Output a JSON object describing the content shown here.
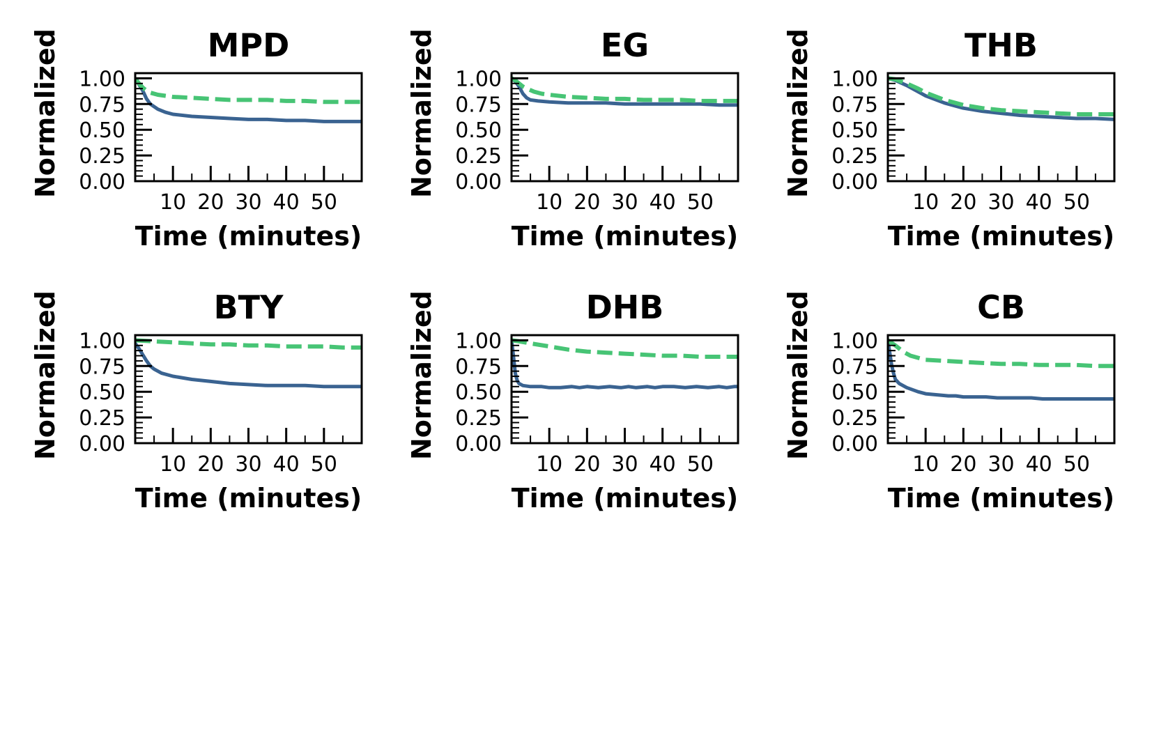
{
  "colors": {
    "series_solid": "#3a6391",
    "series_dashed": "#47c475",
    "axes": "#000000",
    "background": "#ffffff"
  },
  "chart_data": [
    {
      "type": "line",
      "title": "MPD",
      "xlabel": "Time (minutes)",
      "ylabel": "Normalized",
      "xlim": [
        0,
        60
      ],
      "ylim": [
        0.0,
        1.05
      ],
      "xticks": [
        10,
        20,
        30,
        40,
        50
      ],
      "xtick_labels": [
        "10",
        "20",
        "30",
        "40",
        "50"
      ],
      "yticks": [
        0.0,
        0.25,
        0.5,
        0.75,
        1.0
      ],
      "ytick_labels": [
        "0.00",
        "0.25",
        "0.50",
        "0.75",
        "1.00"
      ],
      "grid": false,
      "series": [
        {
          "style": "solid",
          "x": [
            0,
            1,
            2,
            3,
            4,
            6,
            8,
            10,
            15,
            20,
            25,
            30,
            35,
            40,
            45,
            50,
            55,
            60
          ],
          "y": [
            0.99,
            0.94,
            0.88,
            0.8,
            0.75,
            0.7,
            0.67,
            0.65,
            0.63,
            0.62,
            0.61,
            0.6,
            0.6,
            0.59,
            0.59,
            0.58,
            0.58,
            0.58
          ]
        },
        {
          "style": "dashed",
          "x": [
            0,
            1,
            2,
            3,
            4,
            6,
            8,
            10,
            15,
            20,
            25,
            30,
            35,
            40,
            45,
            50,
            55,
            60
          ],
          "y": [
            1.0,
            0.95,
            0.91,
            0.88,
            0.86,
            0.84,
            0.83,
            0.82,
            0.81,
            0.8,
            0.79,
            0.79,
            0.79,
            0.78,
            0.78,
            0.77,
            0.77,
            0.77
          ]
        }
      ]
    },
    {
      "type": "line",
      "title": "EG",
      "xlabel": "Time (minutes)",
      "ylabel": "Normalized",
      "xlim": [
        0,
        60
      ],
      "ylim": [
        0.0,
        1.05
      ],
      "xticks": [
        10,
        20,
        30,
        40,
        50
      ],
      "xtick_labels": [
        "10",
        "20",
        "30",
        "40",
        "50"
      ],
      "yticks": [
        0.0,
        0.25,
        0.5,
        0.75,
        1.0
      ],
      "ytick_labels": [
        "0.00",
        "0.25",
        "0.50",
        "0.75",
        "1.00"
      ],
      "grid": false,
      "series": [
        {
          "style": "solid",
          "x": [
            0,
            1,
            2,
            3,
            4,
            5,
            7,
            10,
            15,
            20,
            25,
            30,
            35,
            40,
            45,
            50,
            55,
            60
          ],
          "y": [
            1.0,
            0.97,
            0.92,
            0.85,
            0.81,
            0.79,
            0.78,
            0.77,
            0.76,
            0.76,
            0.76,
            0.75,
            0.75,
            0.75,
            0.75,
            0.75,
            0.74,
            0.74
          ]
        },
        {
          "style": "dashed",
          "x": [
            0,
            1,
            2,
            3,
            4,
            6,
            8,
            10,
            15,
            20,
            25,
            30,
            35,
            40,
            45,
            50,
            55,
            60
          ],
          "y": [
            1.0,
            0.98,
            0.95,
            0.92,
            0.9,
            0.87,
            0.85,
            0.84,
            0.82,
            0.81,
            0.8,
            0.8,
            0.79,
            0.79,
            0.79,
            0.78,
            0.78,
            0.78
          ]
        }
      ]
    },
    {
      "type": "line",
      "title": "THB",
      "xlabel": "Time (minutes)",
      "ylabel": "Normalized",
      "xlim": [
        0,
        60
      ],
      "ylim": [
        0.0,
        1.05
      ],
      "xticks": [
        10,
        20,
        30,
        40,
        50
      ],
      "xtick_labels": [
        "10",
        "20",
        "30",
        "40",
        "50"
      ],
      "yticks": [
        0.0,
        0.25,
        0.5,
        0.75,
        1.0
      ],
      "ytick_labels": [
        "0.00",
        "0.25",
        "0.50",
        "0.75",
        "1.00"
      ],
      "grid": false,
      "series": [
        {
          "style": "solid",
          "x": [
            0,
            2,
            5,
            8,
            10,
            15,
            20,
            25,
            30,
            35,
            40,
            45,
            50,
            55,
            60
          ],
          "y": [
            1.0,
            0.98,
            0.93,
            0.87,
            0.83,
            0.76,
            0.71,
            0.68,
            0.66,
            0.64,
            0.63,
            0.62,
            0.61,
            0.61,
            0.6
          ]
        },
        {
          "style": "dashed",
          "x": [
            0,
            2,
            5,
            8,
            10,
            15,
            20,
            25,
            30,
            35,
            40,
            45,
            50,
            55,
            60
          ],
          "y": [
            1.0,
            0.99,
            0.95,
            0.9,
            0.86,
            0.79,
            0.74,
            0.71,
            0.69,
            0.68,
            0.67,
            0.66,
            0.65,
            0.65,
            0.65
          ]
        }
      ]
    },
    {
      "type": "line",
      "title": "BTY",
      "xlabel": "Time (minutes)",
      "ylabel": "Normalized",
      "xlim": [
        0,
        60
      ],
      "ylim": [
        0.0,
        1.05
      ],
      "xticks": [
        10,
        20,
        30,
        40,
        50
      ],
      "xtick_labels": [
        "10",
        "20",
        "30",
        "40",
        "50"
      ],
      "yticks": [
        0.0,
        0.25,
        0.5,
        0.75,
        1.0
      ],
      "ytick_labels": [
        "0.00",
        "0.25",
        "0.50",
        "0.75",
        "1.00"
      ],
      "grid": false,
      "series": [
        {
          "style": "solid",
          "x": [
            0,
            1,
            2,
            3,
            4,
            5,
            7,
            10,
            15,
            20,
            25,
            30,
            35,
            40,
            45,
            50,
            55,
            60
          ],
          "y": [
            0.97,
            0.92,
            0.86,
            0.8,
            0.75,
            0.72,
            0.68,
            0.65,
            0.62,
            0.6,
            0.58,
            0.57,
            0.56,
            0.56,
            0.56,
            0.55,
            0.55,
            0.55
          ]
        },
        {
          "style": "dashed",
          "x": [
            0,
            5,
            10,
            15,
            20,
            25,
            30,
            35,
            40,
            45,
            50,
            55,
            60
          ],
          "y": [
            1.0,
            0.99,
            0.98,
            0.97,
            0.96,
            0.96,
            0.95,
            0.95,
            0.94,
            0.94,
            0.94,
            0.93,
            0.93
          ]
        }
      ]
    },
    {
      "type": "line",
      "title": "DHB",
      "xlabel": "Time (minutes)",
      "ylabel": "Normalized",
      "xlim": [
        0,
        60
      ],
      "ylim": [
        0.0,
        1.05
      ],
      "xticks": [
        10,
        20,
        30,
        40,
        50
      ],
      "xtick_labels": [
        "10",
        "20",
        "30",
        "40",
        "50"
      ],
      "yticks": [
        0.0,
        0.25,
        0.5,
        0.75,
        1.0
      ],
      "ytick_labels": [
        "0.00",
        "0.25",
        "0.50",
        "0.75",
        "1.00"
      ],
      "grid": false,
      "series": [
        {
          "style": "solid",
          "x": [
            0,
            0.5,
            1,
            1.5,
            2,
            3,
            5,
            8,
            10,
            13,
            16,
            18,
            20,
            23,
            26,
            29,
            31,
            33,
            36,
            38,
            40,
            43,
            46,
            49,
            52,
            55,
            57,
            59,
            60
          ],
          "y": [
            1.0,
            0.85,
            0.68,
            0.61,
            0.58,
            0.56,
            0.55,
            0.55,
            0.54,
            0.54,
            0.55,
            0.54,
            0.55,
            0.54,
            0.55,
            0.54,
            0.55,
            0.54,
            0.55,
            0.54,
            0.55,
            0.55,
            0.54,
            0.55,
            0.54,
            0.55,
            0.54,
            0.55,
            0.55
          ]
        },
        {
          "style": "dashed",
          "x": [
            0,
            2,
            5,
            10,
            15,
            20,
            25,
            30,
            35,
            40,
            45,
            50,
            55,
            60
          ],
          "y": [
            1.0,
            0.99,
            0.97,
            0.94,
            0.91,
            0.89,
            0.88,
            0.87,
            0.86,
            0.85,
            0.85,
            0.84,
            0.84,
            0.84
          ]
        }
      ]
    },
    {
      "type": "line",
      "title": "CB",
      "xlabel": "Time (minutes)",
      "ylabel": "Normalized",
      "xlim": [
        0,
        60
      ],
      "ylim": [
        0.0,
        1.05
      ],
      "xticks": [
        10,
        20,
        30,
        40,
        50
      ],
      "xtick_labels": [
        "10",
        "20",
        "30",
        "40",
        "50"
      ],
      "yticks": [
        0.0,
        0.25,
        0.5,
        0.75,
        1.0
      ],
      "ytick_labels": [
        "0.00",
        "0.25",
        "0.50",
        "0.75",
        "1.00"
      ],
      "grid": false,
      "series": [
        {
          "style": "solid",
          "x": [
            0,
            0.5,
            1,
            1.5,
            2,
            3,
            5,
            8,
            10,
            13,
            16,
            18,
            20,
            23,
            26,
            29,
            32,
            35,
            38,
            41,
            44,
            47,
            50,
            53,
            56,
            58,
            60
          ],
          "y": [
            1.0,
            0.88,
            0.76,
            0.68,
            0.62,
            0.58,
            0.54,
            0.5,
            0.48,
            0.47,
            0.46,
            0.46,
            0.45,
            0.45,
            0.45,
            0.44,
            0.44,
            0.44,
            0.44,
            0.43,
            0.43,
            0.43,
            0.43,
            0.43,
            0.43,
            0.43,
            0.43
          ]
        },
        {
          "style": "dashed",
          "x": [
            0,
            2,
            4,
            6,
            8,
            10,
            15,
            20,
            25,
            30,
            35,
            40,
            45,
            50,
            55,
            60
          ],
          "y": [
            1.0,
            0.95,
            0.89,
            0.85,
            0.83,
            0.81,
            0.8,
            0.79,
            0.78,
            0.77,
            0.77,
            0.76,
            0.76,
            0.76,
            0.75,
            0.75
          ]
        }
      ]
    }
  ]
}
